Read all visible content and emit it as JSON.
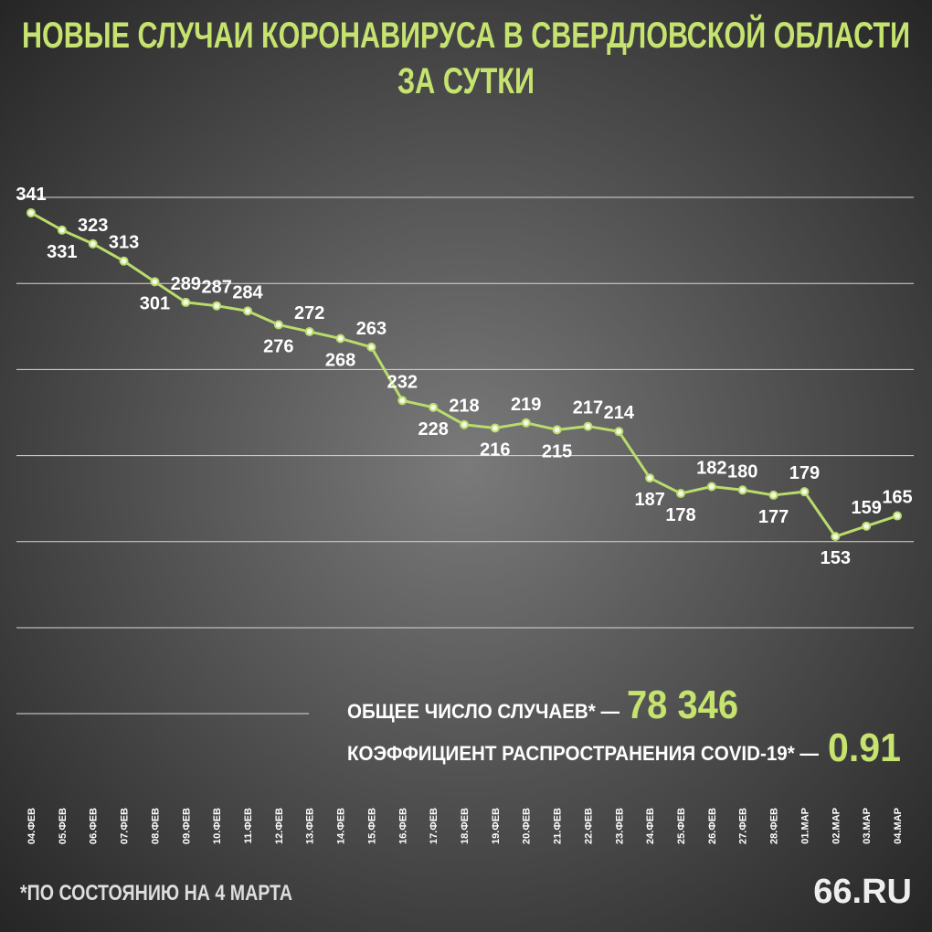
{
  "chart_data": {
    "type": "line",
    "title_lines": [
      "НОВЫЕ СЛУЧАИ КОРОНАВИРУСА В СВЕРДЛОВСКОЙ ОБЛАСТИ",
      "ЗА СУТКИ"
    ],
    "categories": [
      "04.ФЕВ",
      "05.ФЕВ",
      "06.ФЕВ",
      "07.ФЕВ",
      "08.ФЕВ",
      "09.ФЕВ",
      "10.ФЕВ",
      "11.ФЕВ",
      "12.ФЕВ",
      "13.ФЕВ",
      "14.ФЕВ",
      "15.ФЕВ",
      "16.ФЕВ",
      "17.ФЕВ",
      "18.ФЕВ",
      "19.ФЕВ",
      "20.ФЕВ",
      "21.ФЕВ",
      "22.ФЕВ",
      "23.ФЕВ",
      "24.ФЕВ",
      "25.ФЕВ",
      "26.ФЕВ",
      "27.ФЕВ",
      "28.ФЕВ",
      "01.МАР",
      "02.МАР",
      "03.МАР",
      "04.МАР"
    ],
    "values": [
      341,
      331,
      323,
      313,
      301,
      289,
      287,
      284,
      276,
      272,
      268,
      263,
      232,
      228,
      218,
      216,
      219,
      215,
      217,
      214,
      187,
      178,
      182,
      180,
      177,
      179,
      153,
      159,
      165
    ],
    "color": "#b9dc6c",
    "ylim": [
      100,
      350
    ],
    "yticks": [
      100,
      150,
      200,
      250,
      300,
      350
    ],
    "grid": true,
    "total_label": "ОБЩЕЕ ЧИСЛО СЛУЧАЕВ* —",
    "total_value": "78 346",
    "rate_label": "КОЭФФИЦИЕНТ РАСПРОСТРАНЕНИЯ COVID-19* —",
    "rate_value": "0.91",
    "footnote": "*ПО СОСТОЯНИЮ НА 4 МАРТА",
    "logo": "66.RU"
  }
}
